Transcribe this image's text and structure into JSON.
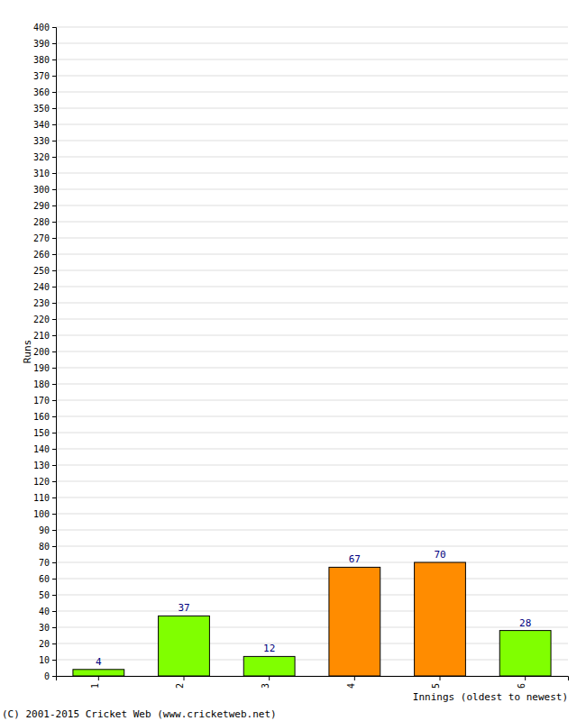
{
  "chart_data": {
    "type": "bar",
    "categories": [
      "1",
      "2",
      "3",
      "4",
      "5",
      "6"
    ],
    "values": [
      4,
      37,
      12,
      67,
      70,
      28
    ],
    "colors": [
      "#80ff00",
      "#80ff00",
      "#80ff00",
      "#ff8c00",
      "#ff8c00",
      "#80ff00"
    ],
    "ylim": [
      0,
      400
    ],
    "yticks": [
      0,
      10,
      20,
      30,
      40,
      50,
      60,
      70,
      80,
      90,
      100,
      110,
      120,
      130,
      140,
      150,
      160,
      170,
      180,
      190,
      200,
      210,
      220,
      230,
      240,
      250,
      260,
      270,
      280,
      290,
      300,
      310,
      320,
      330,
      340,
      350,
      360,
      370,
      380,
      390,
      400
    ],
    "grid": true,
    "data_labels": true,
    "x_label": "Innings (oldest to newest)",
    "y_label": "Runs",
    "annotation": "(C) 2001-2015 Cricket Web (www.cricketweb.net)"
  }
}
